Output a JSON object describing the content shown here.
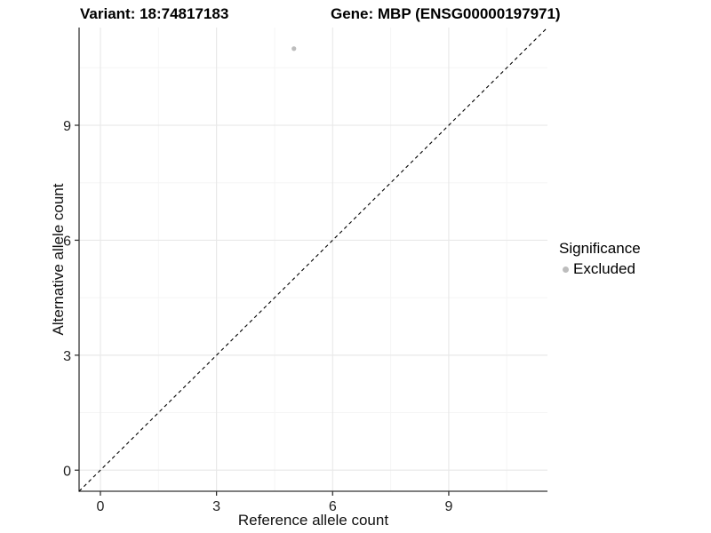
{
  "titles": {
    "left": "Variant: 18:74817183",
    "right": "Gene: MBP (ENSG00000197971)"
  },
  "chart_data": {
    "type": "scatter",
    "xlabel": "Reference allele count",
    "ylabel": "Alternative allele count",
    "xlim": [
      -0.55,
      11.55
    ],
    "ylim": [
      -0.55,
      11.55
    ],
    "xticks": [
      0,
      3,
      6,
      9
    ],
    "yticks": [
      0,
      3,
      6,
      9
    ],
    "xticks_minor": [
      1.5,
      4.5,
      7.5,
      10.5
    ],
    "yticks_minor": [
      1.5,
      4.5,
      7.5,
      10.5
    ],
    "grid": "major and minor gridlines on white panel",
    "identity_line": {
      "style": "dashed",
      "slope": 1,
      "intercept": 0,
      "color": "#000000"
    },
    "points": [
      {
        "x": 5,
        "y": 11,
        "significance": "Excluded",
        "color": "#bdbdbd"
      }
    ],
    "legend": {
      "title": "Significance",
      "position": "right",
      "items": [
        {
          "label": "Excluded",
          "marker": "circle",
          "color": "#bdbdbd"
        }
      ]
    }
  },
  "colors": {
    "background": "#ffffff",
    "axis_line": "#333333",
    "tick_label": "#1f1f1f",
    "grid_major": "#e9e9e9",
    "grid_minor": "#f5f5f5",
    "point": "#bdbdbd"
  }
}
